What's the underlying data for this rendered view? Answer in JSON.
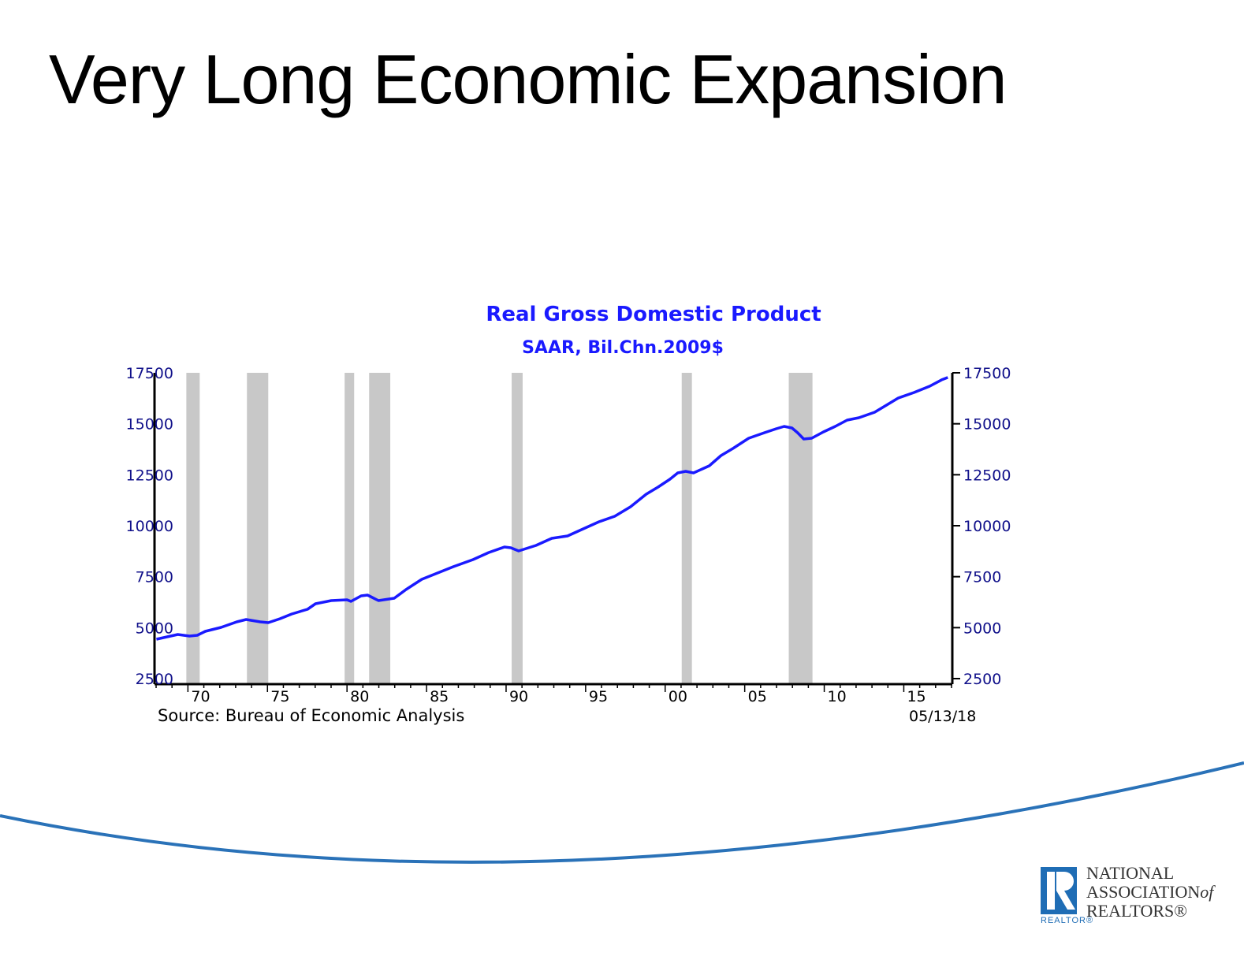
{
  "slide": {
    "title": "Very Long Economic Expansion"
  },
  "logo": {
    "line1": "NATIONAL",
    "line2": "ASSOCIATION",
    "line2_suffix": "of",
    "line3": "REALTORS®",
    "mark_text": "REALTOR®"
  },
  "colors": {
    "series": "#1a1aff",
    "recession": "#c8c8c8",
    "axis_text": "#10108a",
    "curve": "#2a72b8"
  },
  "chart_data": {
    "type": "line",
    "title": "Real Gross Domestic Product",
    "subtitle": "SAAR, Bil.Chn.2009$",
    "source": "Source:  Bureau of Economic Analysis",
    "date": "05/13/18",
    "xlim": [
      1967.9,
      2018.05
    ],
    "ylim": [
      2500,
      17500
    ],
    "y_ticks": [
      2500,
      5000,
      7500,
      10000,
      12500,
      15000,
      17500
    ],
    "y_tick_labels": [
      "2500",
      "5000",
      "7500",
      "10000",
      "12500",
      "15000",
      "17500"
    ],
    "x_ticks": [
      1970,
      1975,
      1980,
      1985,
      1990,
      1995,
      2000,
      2005,
      2010,
      2015
    ],
    "x_tick_labels": [
      "70",
      "75",
      "80",
      "85",
      "90",
      "95",
      "00",
      "05",
      "10",
      "15"
    ],
    "recessions": [
      [
        1969.9,
        1970.74
      ],
      [
        1973.71,
        1975.05
      ],
      [
        1979.85,
        1980.45
      ],
      [
        1981.39,
        1982.72
      ],
      [
        1990.35,
        1991.04
      ],
      [
        2001.04,
        2001.68
      ],
      [
        2007.77,
        2009.26
      ]
    ],
    "series": [
      {
        "name": "Real GDP",
        "x": [
          1968.02,
          1969.36,
          1970.1,
          1970.59,
          1971.09,
          1972.08,
          1973.07,
          1973.66,
          1974.55,
          1975.05,
          1975.79,
          1976.53,
          1977.52,
          1978.02,
          1979.01,
          1980.0,
          1980.25,
          1980.89,
          1981.29,
          1981.49,
          1981.98,
          1982.97,
          1983.71,
          1984.7,
          1985.69,
          1986.68,
          1987.92,
          1988.91,
          1989.9,
          1990.3,
          1990.79,
          1991.88,
          1992.87,
          1993.86,
          1994.85,
          1995.84,
          1996.83,
          1997.82,
          1998.81,
          1999.55,
          2000.3,
          2000.79,
          2001.29,
          2001.78,
          2002.77,
          2003.51,
          2004.26,
          2005.25,
          2006.24,
          2006.98,
          2007.48,
          2007.97,
          2008.32,
          2008.71,
          2009.21,
          2009.95,
          2010.69,
          2011.44,
          2012.18,
          2013.17,
          2013.91,
          2014.65,
          2015.64,
          2016.63,
          2017.38,
          2017.77
        ],
        "y": [
          4433,
          4665,
          4588,
          4626,
          4820,
          5013,
          5284,
          5400,
          5284,
          5245,
          5438,
          5670,
          5902,
          6173,
          6328,
          6366,
          6289,
          6560,
          6598,
          6521,
          6328,
          6444,
          6869,
          7372,
          7681,
          7991,
          8339,
          8687,
          8957,
          8919,
          8764,
          9035,
          9383,
          9499,
          9847,
          10195,
          10465,
          10929,
          11548,
          11896,
          12282,
          12591,
          12668,
          12591,
          12939,
          13442,
          13790,
          14292,
          14563,
          14756,
          14872,
          14795,
          14563,
          14254,
          14292,
          14602,
          14872,
          15182,
          15298,
          15568,
          15916,
          16264,
          16535,
          16844,
          17154,
          17270
        ]
      }
    ]
  }
}
